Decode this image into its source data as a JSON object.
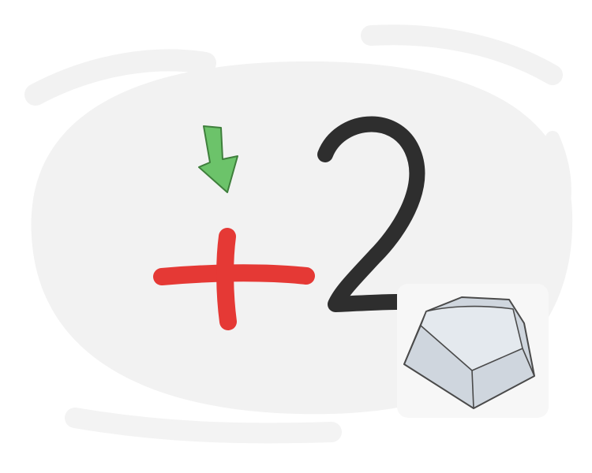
{
  "illustration": {
    "digit": "2",
    "symbols": {
      "plus": "plus-icon",
      "arrow": "arrow-down-icon",
      "key": "keyboard-key-icon"
    },
    "colors": {
      "background_blob": "#f2f2f2",
      "plus": "#e53935",
      "arrow_fill": "#6cc36a",
      "arrow_stroke": "#3f7f3c",
      "digit": "#2e2e2e",
      "key_fill": "#cfd6de",
      "key_stroke": "#4a4a4a"
    }
  }
}
